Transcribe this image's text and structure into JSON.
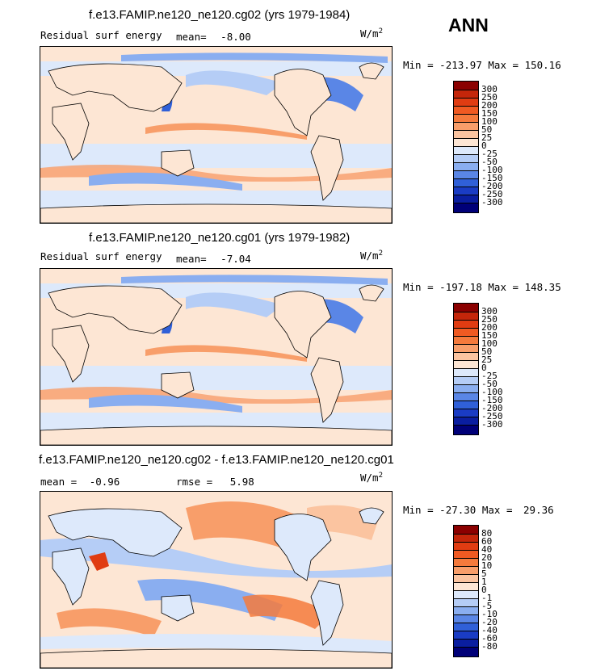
{
  "season": "ANN",
  "panels": [
    {
      "title": "f.e13.FAMIP.ne120_ne120.cg02 (yrs 1979-1984)",
      "variable": "Residual surf energy",
      "stats": [
        {
          "label": "mean=",
          "value": "-8.00"
        }
      ],
      "units_base": "W/m",
      "units_exp": "2",
      "min_label": "Min =",
      "min_value": "-213.97",
      "max_label": "Max =",
      "max_value": "150.16",
      "levels": [
        "300",
        "250",
        "200",
        "150",
        "100",
        "50",
        "25",
        "0",
        "-25",
        "-50",
        "-100",
        "-150",
        "-200",
        "-250",
        "-300"
      ],
      "colors": [
        "#8b0000",
        "#c4260a",
        "#e03c12",
        "#f05a22",
        "#f57a3c",
        "#f89e6a",
        "#fbc4a0",
        "#fde6d4",
        "#dde9fb",
        "#b5cdf6",
        "#8aaef0",
        "#5a86e6",
        "#3060d8",
        "#1a3cc4",
        "#0a1ea0",
        "#000078"
      ]
    },
    {
      "title": "f.e13.FAMIP.ne120_ne120.cg01 (yrs 1979-1982)",
      "variable": "Residual surf energy",
      "stats": [
        {
          "label": "mean=",
          "value": "-7.04"
        }
      ],
      "units_base": "W/m",
      "units_exp": "2",
      "min_label": "Min =",
      "min_value": "-197.18",
      "max_label": "Max =",
      "max_value": "148.35",
      "levels": [
        "300",
        "250",
        "200",
        "150",
        "100",
        "50",
        "25",
        "0",
        "-25",
        "-50",
        "-100",
        "-150",
        "-200",
        "-250",
        "-300"
      ],
      "colors": [
        "#8b0000",
        "#c4260a",
        "#e03c12",
        "#f05a22",
        "#f57a3c",
        "#f89e6a",
        "#fbc4a0",
        "#fde6d4",
        "#dde9fb",
        "#b5cdf6",
        "#8aaef0",
        "#5a86e6",
        "#3060d8",
        "#1a3cc4",
        "#0a1ea0",
        "#000078"
      ]
    },
    {
      "title": "f.e13.FAMIP.ne120_ne120.cg02 - f.e13.FAMIP.ne120_ne120.cg01",
      "variable": "",
      "stats": [
        {
          "label": "mean =",
          "value": "-0.96"
        },
        {
          "label": "rmse =",
          "value": "5.98"
        }
      ],
      "units_base": "W/m",
      "units_exp": "2",
      "min_label": "Min =",
      "min_value": "-27.30",
      "max_label": "Max =",
      "max_value": "29.36",
      "levels": [
        "80",
        "60",
        "40",
        "20",
        "10",
        "5",
        "1",
        "0",
        "-1",
        "-5",
        "-10",
        "-20",
        "-40",
        "-60",
        "-80"
      ],
      "colors": [
        "#8b0000",
        "#c4260a",
        "#e03c12",
        "#f05a22",
        "#f57a3c",
        "#f89e6a",
        "#fbc4a0",
        "#fde6d4",
        "#dde9fb",
        "#b5cdf6",
        "#8aaef0",
        "#5a86e6",
        "#3060d8",
        "#1a3cc4",
        "#0a1ea0",
        "#000078"
      ]
    }
  ]
}
